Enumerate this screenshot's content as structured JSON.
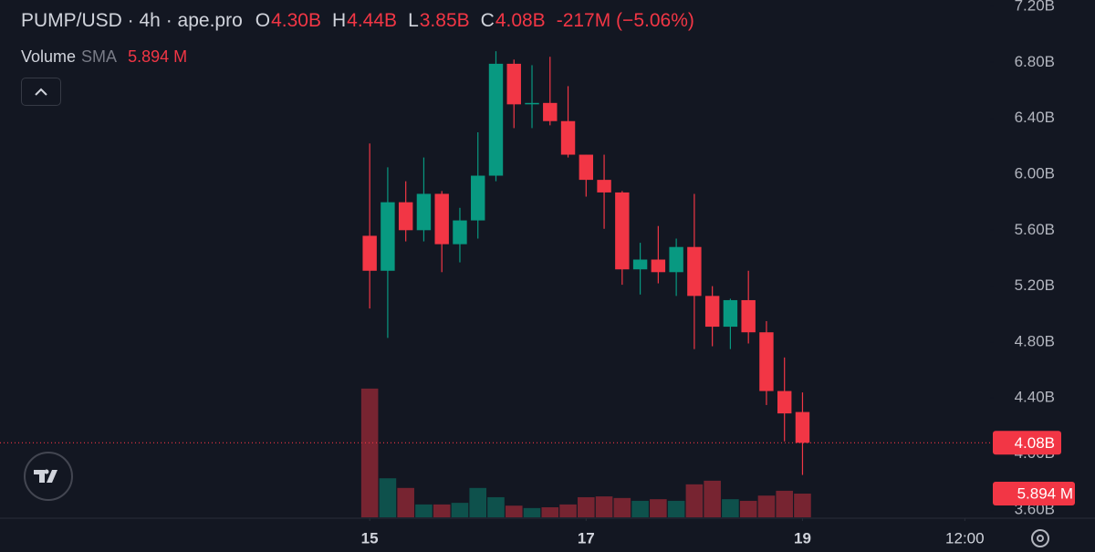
{
  "chart_data": {
    "type": "candlestick",
    "symbol": "PUMP/USD · 4h · ape.pro",
    "ohlc_legend": [
      {
        "key": "O",
        "label": "4.30B"
      },
      {
        "key": "H",
        "label": "4.44B"
      },
      {
        "key": "L",
        "label": "3.85B"
      },
      {
        "key": "C",
        "label": "4.08B"
      }
    ],
    "change": "-217M (−5.06%)",
    "volume_title": "Volume",
    "volume_indicator": "SMA",
    "volume_indicator_value": "5.894 M",
    "open": [
      5.56,
      5.31,
      5.8,
      5.6,
      5.86,
      5.5,
      5.67,
      5.99,
      6.79,
      6.5,
      6.51,
      6.38,
      6.14,
      5.96,
      5.87,
      5.32,
      5.39,
      5.3,
      5.48,
      5.13,
      4.91,
      5.1,
      4.87,
      4.45,
      4.3
    ],
    "high": [
      6.22,
      6.05,
      5.95,
      6.12,
      5.88,
      5.76,
      6.3,
      6.88,
      6.82,
      6.78,
      6.84,
      6.63,
      6.14,
      6.14,
      5.88,
      5.51,
      5.63,
      5.54,
      5.86,
      5.2,
      5.11,
      5.31,
      4.95,
      4.69,
      4.44
    ],
    "low": [
      5.04,
      4.83,
      5.52,
      5.52,
      5.3,
      5.37,
      5.54,
      5.95,
      6.33,
      6.33,
      6.35,
      6.12,
      5.84,
      5.61,
      5.21,
      5.14,
      5.22,
      5.13,
      4.75,
      4.77,
      4.75,
      4.79,
      4.35,
      4.09,
      3.85
    ],
    "close": [
      5.31,
      5.8,
      5.6,
      5.86,
      5.5,
      5.67,
      5.99,
      6.79,
      6.5,
      6.51,
      6.38,
      6.14,
      5.96,
      5.87,
      5.32,
      5.39,
      5.3,
      5.48,
      5.13,
      4.91,
      5.1,
      4.87,
      4.45,
      4.29,
      4.08
    ],
    "volume": [
      32,
      9.7,
      7.3,
      3.2,
      3.2,
      3.6,
      7.3,
      5.0,
      2.9,
      2.3,
      2.5,
      3.2,
      5.0,
      5.2,
      4.8,
      4.1,
      4.5,
      4.1,
      8.2,
      9.1,
      4.5,
      4.1,
      5.4,
      6.6,
      5.894
    ],
    "up_color": "#089981",
    "down_color": "#f23645",
    "ylim": [
      3.547,
      7.246
    ],
    "yticks": [
      {
        "value": 3.6,
        "label": "3.60B"
      },
      {
        "value": 4.0,
        "label": "4.00B"
      },
      {
        "value": 4.4,
        "label": "4.40B"
      },
      {
        "value": 4.8,
        "label": "4.80B"
      },
      {
        "value": 5.2,
        "label": "5.20B"
      },
      {
        "value": 5.6,
        "label": "5.60B"
      },
      {
        "value": 6.0,
        "label": "6.00B"
      },
      {
        "value": 6.4,
        "label": "6.40B"
      },
      {
        "value": 6.8,
        "label": "6.80B"
      },
      {
        "value": 7.2,
        "label": "7.20B"
      }
    ],
    "volume_ylim": [
      0,
      40
    ],
    "xlim": [
      -20.5,
      34.4
    ],
    "xticks": [
      {
        "value": 0,
        "label": "15"
      },
      {
        "value": 12,
        "label": "17"
      },
      {
        "value": 24,
        "label": "19"
      },
      {
        "value": 33,
        "label": "12:00"
      }
    ],
    "last_price": {
      "value": 4.08,
      "label": "4.08B"
    },
    "last_volume": {
      "value": 5.894,
      "label": "5.894 M"
    }
  }
}
